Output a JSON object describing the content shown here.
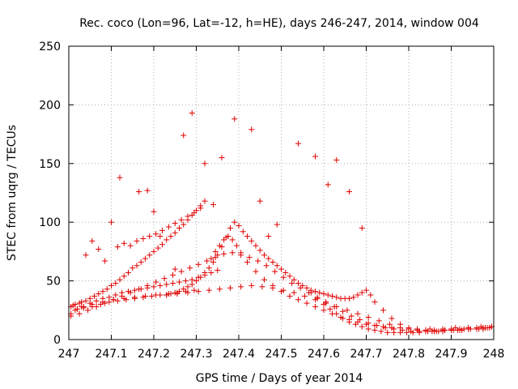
{
  "chart_data": {
    "type": "scatter",
    "title": "Rec. coco (Lon=96, Lat=-12, h=HE), days 246-247, 2014, window 004",
    "xlabel": "GPS time / Days of year 2014",
    "ylabel": "STEC from uqrg / TECUs",
    "xlim": [
      247,
      248
    ],
    "ylim": [
      0,
      250
    ],
    "xticks": [
      247,
      247.1,
      247.2,
      247.3,
      247.4,
      247.5,
      247.6,
      247.7,
      247.8,
      247.9,
      248
    ],
    "xtick_labels": [
      "247",
      "247.1",
      "247.2",
      "247.3",
      "247.4",
      "247.5",
      "247.6",
      "247.7",
      "247.8",
      "247.9",
      "248"
    ],
    "yticks": [
      0,
      50,
      100,
      150,
      200,
      250
    ],
    "ytick_labels": [
      "0",
      "50",
      "100",
      "150",
      "200",
      "250"
    ],
    "grid": true,
    "marker": "+",
    "color": "#e00000",
    "series": [
      {
        "name": "STEC",
        "x": [
          247.005,
          247.01,
          247.015,
          247.025,
          247.03,
          247.04,
          247.05,
          247.06,
          247.07,
          247.08,
          247.09,
          247.1,
          247.11,
          247.12,
          247.13,
          247.14,
          247.15,
          247.16,
          247.17,
          247.18,
          247.19,
          247.2,
          247.21,
          247.22,
          247.23,
          247.24,
          247.25,
          247.26,
          247.27,
          247.28,
          247.29,
          247.3,
          247.31,
          247.32,
          247.005,
          247.02,
          247.035,
          247.05,
          247.065,
          247.08,
          247.095,
          247.11,
          247.125,
          247.14,
          247.155,
          247.17,
          247.185,
          247.2,
          247.215,
          247.23,
          247.245,
          247.26,
          247.275,
          247.29,
          247.305,
          247.32,
          247.335,
          247.35,
          247.015,
          247.035,
          247.055,
          247.075,
          247.095,
          247.115,
          247.135,
          247.155,
          247.175,
          247.195,
          247.215,
          247.235,
          247.255,
          247.275,
          247.295,
          247.03,
          247.055,
          247.08,
          247.105,
          247.13,
          247.155,
          247.18,
          247.205,
          247.23,
          247.255,
          247.28,
          247.305,
          247.33,
          247.355,
          247.38,
          247.405,
          247.43,
          247.455,
          247.48,
          247.505,
          247.53,
          247.555,
          247.58,
          247.605,
          247.63,
          247.655,
          247.68,
          247.705,
          247.73,
          247.755,
          247.78,
          247.8,
          247.82,
          247.84,
          247.86,
          247.88,
          247.9,
          247.92,
          247.94,
          247.96,
          247.975,
          247.005,
          247.025,
          247.045,
          247.065,
          247.085,
          247.105,
          247.125,
          247.145,
          247.165,
          247.185,
          247.205,
          247.225,
          247.245,
          247.265,
          247.285,
          247.305,
          247.325,
          247.345,
          247.365,
          247.385,
          247.405,
          247.425,
          247.445,
          247.465,
          247.485,
          247.505,
          247.525,
          247.545,
          247.565,
          247.585,
          247.605,
          247.625,
          247.645,
          247.665,
          247.685,
          247.705,
          247.725,
          247.745,
          247.765,
          247.785,
          247.805,
          247.825,
          247.845,
          247.865,
          247.885,
          247.905,
          247.925,
          247.945,
          247.965,
          247.985,
          247.335,
          247.345,
          247.355,
          247.365,
          247.375,
          247.385,
          247.395,
          247.405,
          247.42,
          247.44,
          247.46,
          247.48,
          247.5,
          247.52,
          247.54,
          247.56,
          247.58,
          247.6,
          247.62,
          247.64,
          247.66,
          247.68,
          247.7,
          247.72,
          247.74,
          247.76,
          247.78,
          247.8,
          247.82,
          247.85,
          247.88,
          247.91,
          247.94,
          247.97,
          247.995,
          247.23,
          247.24,
          247.25,
          247.26,
          247.27,
          247.28,
          247.29,
          247.3,
          247.31,
          247.32,
          247.33,
          247.34,
          247.35,
          247.36,
          247.37,
          247.38,
          247.39,
          247.4,
          247.41,
          247.42,
          247.43,
          247.44,
          247.45,
          247.46,
          247.47,
          247.48,
          247.49,
          247.5,
          247.51,
          247.52,
          247.53,
          247.54,
          247.55,
          247.56,
          247.57,
          247.58,
          247.59,
          247.6,
          247.61,
          247.62,
          247.63,
          247.64,
          247.65,
          247.66,
          247.67,
          247.68,
          247.69,
          247.7,
          247.71,
          247.72,
          247.74,
          247.76,
          247.78,
          247.8,
          247.82,
          247.84,
          247.86,
          247.88,
          247.9,
          247.92,
          247.94,
          247.96,
          247.98,
          247.995,
          247.57,
          247.585,
          247.6,
          247.615,
          247.63,
          247.645,
          247.66,
          247.675,
          247.69,
          247.705,
          247.72,
          247.735,
          247.75,
          247.765,
          247.78,
          247.795,
          247.81,
          247.825,
          247.84,
          247.855,
          247.87,
          247.885,
          247.9,
          247.915,
          247.93,
          247.945,
          247.96,
          247.975,
          247.99,
          247.055,
          247.07,
          247.1,
          247.115,
          247.13,
          247.145,
          247.16,
          247.175,
          247.19,
          247.205,
          247.22,
          247.235,
          247.25,
          247.265,
          247.28,
          247.295,
          247.31,
          247.04,
          247.085,
          247.12,
          247.165,
          247.185,
          247.2,
          247.215,
          247.25,
          247.27,
          247.29,
          247.32,
          247.34,
          247.36,
          247.39,
          247.43,
          247.45,
          247.47,
          247.49,
          247.54,
          247.58,
          247.61,
          247.63,
          247.66,
          247.69
        ],
        "y": [
          28,
          29,
          30,
          31,
          32,
          33,
          35,
          37,
          39,
          41,
          43,
          46,
          48,
          51,
          54,
          57,
          61,
          63,
          66,
          69,
          72,
          75,
          78,
          81,
          85,
          88,
          91,
          95,
          98,
          102,
          106,
          110,
          114,
          118,
          22,
          26,
          28,
          31,
          33,
          35,
          36,
          38,
          40,
          41,
          42,
          43,
          44,
          45,
          46,
          47,
          48,
          49,
          50,
          51,
          53,
          55,
          57,
          59,
          25,
          27,
          28,
          30,
          32,
          33,
          34,
          35,
          36,
          37,
          38,
          39,
          40,
          41,
          42,
          28,
          30,
          32,
          34,
          35,
          36,
          37,
          38,
          38,
          39,
          40,
          41,
          42,
          43,
          44,
          45,
          46,
          45,
          44,
          42,
          40,
          37,
          34,
          31,
          28,
          25,
          22,
          19,
          16,
          13,
          10,
          9,
          8,
          8,
          7,
          7,
          8,
          8,
          9,
          9,
          9,
          20,
          22,
          25,
          28,
          31,
          34,
          37,
          40,
          43,
          46,
          49,
          52,
          55,
          58,
          61,
          64,
          67,
          70,
          73,
          74,
          72,
          70,
          67,
          63,
          58,
          53,
          48,
          44,
          40,
          36,
          32,
          28,
          24,
          20,
          17,
          14,
          12,
          10,
          9,
          8,
          7,
          7,
          7,
          7,
          8,
          8,
          8,
          9,
          9,
          10,
          69,
          75,
          80,
          85,
          88,
          85,
          80,
          74,
          66,
          58,
          51,
          46,
          41,
          37,
          34,
          31,
          28,
          25,
          22,
          19,
          17,
          15,
          13,
          12,
          11,
          10,
          10,
          9,
          9,
          9,
          9,
          10,
          10,
          11,
          11,
          38,
          39,
          40,
          41,
          43,
          45,
          47,
          50,
          53,
          57,
          61,
          66,
          72,
          79,
          87,
          95,
          100,
          97,
          92,
          88,
          84,
          80,
          76,
          72,
          69,
          66,
          63,
          60,
          57,
          54,
          51,
          48,
          46,
          44,
          42,
          41,
          40,
          39,
          38,
          37,
          36,
          35,
          35,
          35,
          36,
          38,
          40,
          42,
          38,
          32,
          25,
          18,
          13,
          10,
          9,
          8,
          8,
          8,
          9,
          9,
          10,
          10,
          10,
          11,
          40,
          35,
          30,
          26,
          22,
          18,
          15,
          13,
          11,
          9,
          8,
          7,
          6,
          6,
          6,
          6,
          6,
          6,
          7,
          7,
          7,
          8,
          8,
          8,
          9,
          9,
          10,
          10,
          10,
          84,
          77,
          100,
          79,
          82,
          80,
          84,
          86,
          88,
          90,
          93,
          96,
          99,
          102,
          105,
          108,
          112,
          72,
          67,
          138,
          126,
          127,
          109,
          88,
          60,
          174,
          193,
          150,
          115,
          155,
          188,
          179,
          118,
          88,
          98,
          167,
          156,
          132,
          153,
          126,
          95
        ]
      }
    ]
  }
}
